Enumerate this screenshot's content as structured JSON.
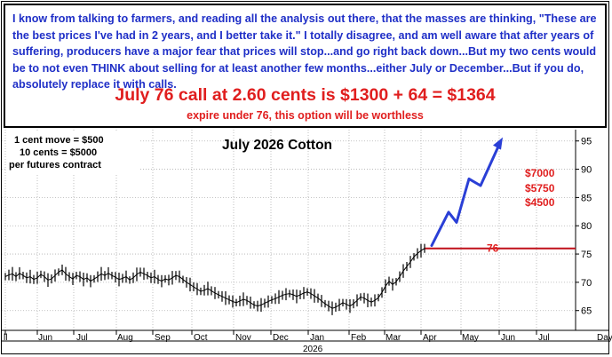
{
  "commentary": "I know from talking to farmers, and reading all the analysis out there, that the masses are thinking, \"These are the best prices I've had in 2 years, and I better take it.\" I totally disagree, and am well aware that after years of suffering, producers have a major fear that prices will stop...and go right back down...But my two cents would be to not even THINK about selling for at least another few months...either July or December...But if you do, absolutely replace it with calls.",
  "headline": "July 76 call at 2.60 cents is $1300 + 64 = $1364",
  "subline": "expire under 76, this option will be worthless",
  "notes": {
    "line1": "1 cent move = $500",
    "line2": "10 cents = $5000",
    "line3": "per futures contract"
  },
  "colors": {
    "commentary": "#1f2fc7",
    "headline": "#e01e1e",
    "strike_line": "#c0101a",
    "projection": "#2a3fd6",
    "price": "#000000"
  },
  "chart_data": {
    "type": "line",
    "title": "July 2026 Cotton",
    "x_tick_labels": [
      "Jun",
      "Jul",
      "Aug",
      "Sep",
      "Oct",
      "Nov",
      "Dec",
      "Jan",
      "Feb",
      "Mar",
      "Apr",
      "May",
      "Jun",
      "Jul",
      "Day"
    ],
    "x_year_label": "2026",
    "y_ticks": [
      65,
      70,
      75,
      80,
      85,
      90,
      95
    ],
    "ylim": [
      61.5,
      97
    ],
    "grid": true,
    "series": [
      {
        "values": [
          71.0,
          71.3,
          71.5,
          71.0,
          71.6,
          71.2,
          70.8,
          71.0,
          70.5,
          70.8,
          71.4,
          71.0,
          70.4,
          70.6,
          71.2,
          71.8,
          72.2,
          71.5,
          71.0,
          70.6,
          71.2,
          71.0,
          70.5,
          70.8,
          70.2,
          70.6,
          71.0,
          71.5,
          71.2,
          71.6,
          71.2,
          70.9,
          70.5,
          70.7,
          71.0,
          70.4,
          70.8,
          71.4,
          71.8,
          71.5,
          71.2,
          70.8,
          71.0,
          70.5,
          70.2,
          70.6,
          70.4,
          70.8,
          71.2,
          71.0,
          70.5,
          70.0,
          69.6,
          69.2,
          68.8,
          68.4,
          68.6,
          68.9,
          68.5,
          68.1,
          67.8,
          67.5,
          67.2,
          66.9,
          66.6,
          66.4,
          66.7,
          67.0,
          66.8,
          66.4,
          66.0,
          65.8,
          66.0,
          66.3,
          66.6,
          66.9,
          67.1,
          67.4,
          67.7,
          67.9,
          68.0,
          67.8,
          67.5,
          67.8,
          68.1,
          68.3,
          68.0,
          67.6,
          67.2,
          66.7,
          66.2,
          65.8,
          65.4,
          65.6,
          66.0,
          66.4,
          66.1,
          65.8,
          66.2,
          66.8,
          67.4,
          67.2,
          66.8,
          66.5,
          66.8,
          67.3,
          68.2,
          69.3,
          70.2,
          69.6,
          70.1,
          71.0,
          72.0,
          72.8,
          73.6,
          74.5,
          75.1,
          75.6,
          76.0
        ]
      },
      {
        "name": "projection",
        "values": [
          76.5,
          82.4,
          80.6,
          88.3,
          87.1,
          94.7
        ]
      }
    ],
    "strike": 76,
    "strike_label": "76",
    "targets": [
      "$7000",
      "$5750",
      "$4500"
    ],
    "target_levels": [
      90,
      87.5,
      85
    ]
  }
}
